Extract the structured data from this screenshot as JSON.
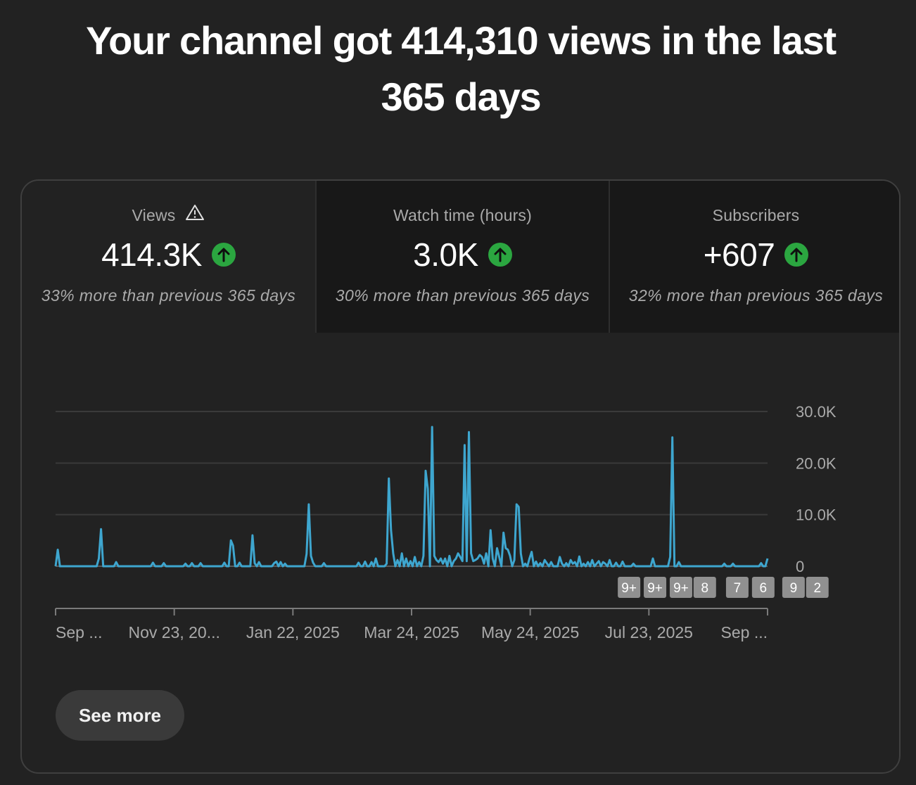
{
  "headline": "Your channel got 414,310 views in the last 365 days",
  "colors": {
    "background": "#222222",
    "line": "#3ea6cf",
    "positive": "#2ba640",
    "marker": "#909090"
  },
  "tabs": [
    {
      "title": "Views",
      "has_warning_icon": true,
      "value": "414.3K",
      "trend_icon": "arrow-up-circle-icon",
      "note": "33% more than previous 365 days",
      "active": true
    },
    {
      "title": "Watch time (hours)",
      "has_warning_icon": false,
      "value": "3.0K",
      "trend_icon": "arrow-up-circle-icon",
      "note": "30% more than previous 365 days",
      "active": false
    },
    {
      "title": "Subscribers",
      "has_warning_icon": false,
      "value": "+607",
      "trend_icon": "arrow-up-circle-icon",
      "note": "32% more than previous 365 days",
      "active": false
    }
  ],
  "chart_data": {
    "type": "line",
    "series": [
      {
        "values": [
          0,
          3200,
          0,
          0,
          0,
          0,
          0,
          0,
          0,
          0,
          0,
          0,
          0,
          0,
          0,
          0,
          0,
          0,
          0,
          0,
          1500,
          7200,
          0,
          0,
          0,
          0,
          0,
          0,
          800,
          0,
          0,
          0,
          0,
          0,
          0,
          0,
          0,
          0,
          0,
          0,
          0,
          0,
          0,
          0,
          0,
          700,
          0,
          0,
          0,
          0,
          600,
          0,
          0,
          0,
          0,
          0,
          0,
          0,
          0,
          0,
          500,
          0,
          0,
          600,
          0,
          0,
          0,
          600,
          0,
          0,
          0,
          0,
          0,
          0,
          0,
          0,
          0,
          0,
          700,
          0,
          0,
          5000,
          4000,
          0,
          0,
          700,
          0,
          0,
          0,
          0,
          0,
          6000,
          600,
          0,
          800,
          0,
          0,
          0,
          0,
          0,
          0,
          600,
          900,
          0,
          800,
          0,
          500,
          0,
          0,
          0,
          0,
          0,
          0,
          0,
          0,
          0,
          2400,
          12000,
          2000,
          700,
          0,
          0,
          0,
          0,
          600,
          0,
          0,
          0,
          0,
          0,
          0,
          0,
          0,
          0,
          0,
          0,
          0,
          0,
          0,
          0,
          700,
          0,
          0,
          900,
          0,
          0,
          800,
          0,
          1500,
          0,
          0,
          0,
          0,
          500,
          17000,
          7000,
          2500,
          0,
          1200,
          0,
          2500,
          0,
          1500,
          0,
          1000,
          0,
          1800,
          0,
          800,
          0,
          2000,
          18500,
          15000,
          0,
          27000,
          2000,
          1200,
          800,
          1500,
          500,
          1500,
          0,
          2000,
          0,
          1000,
          1500,
          2500,
          1800,
          1000,
          23500,
          1000,
          26000,
          2500,
          1000,
          1200,
          1500,
          2200,
          1800,
          500,
          2500,
          0,
          7000,
          1500,
          0,
          3500,
          1800,
          0,
          6500,
          3500,
          3200,
          2000,
          0,
          1200,
          12000,
          11500,
          2500,
          0,
          500,
          0,
          1500,
          2800,
          0,
          900,
          0,
          600,
          0,
          1200,
          600,
          0,
          800,
          0,
          0,
          0,
          1800,
          500,
          0,
          600,
          0,
          1200,
          500,
          800,
          0,
          1900,
          0,
          500,
          0,
          800,
          0,
          1200,
          0,
          500,
          1000,
          0,
          800,
          500,
          0,
          1200,
          0,
          0,
          700,
          0,
          0,
          900,
          0,
          0,
          0,
          0,
          500,
          0,
          0,
          0,
          0,
          0,
          0,
          0,
          0,
          1500,
          0,
          0,
          0,
          0,
          0,
          0,
          0,
          1800,
          25000,
          0,
          0,
          800,
          0,
          0,
          0,
          0,
          0,
          0,
          0,
          0,
          0,
          0,
          0,
          0,
          0,
          0,
          0,
          0,
          0,
          0,
          0,
          0,
          500,
          0,
          0,
          0,
          500,
          0,
          0,
          0,
          0,
          0,
          0,
          0,
          0,
          0,
          0,
          0,
          0,
          600,
          0,
          0,
          1500
        ]
      }
    ],
    "x_tick_labels": [
      "Sep ...",
      "Nov 23, 20...",
      "Jan 22, 2025",
      "Mar 24, 2025",
      "May 24, 2025",
      "Jul 23, 2025",
      "Sep ..."
    ],
    "y_tick_labels": [
      "0",
      "10.0K",
      "20.0K",
      "30.0K"
    ],
    "ylim": [
      0,
      30000
    ],
    "grid": true,
    "y_axis_side": "right",
    "event_markers": [
      {
        "label": "9+",
        "day": 265
      },
      {
        "label": "9+",
        "day": 277
      },
      {
        "label": "9+",
        "day": 289
      },
      {
        "label": "8",
        "day": 300
      },
      {
        "label": "7",
        "day": 315
      },
      {
        "label": "6",
        "day": 327
      },
      {
        "label": "9",
        "day": 341
      },
      {
        "label": "2",
        "day": 352
      }
    ]
  },
  "see_more_label": "See more"
}
